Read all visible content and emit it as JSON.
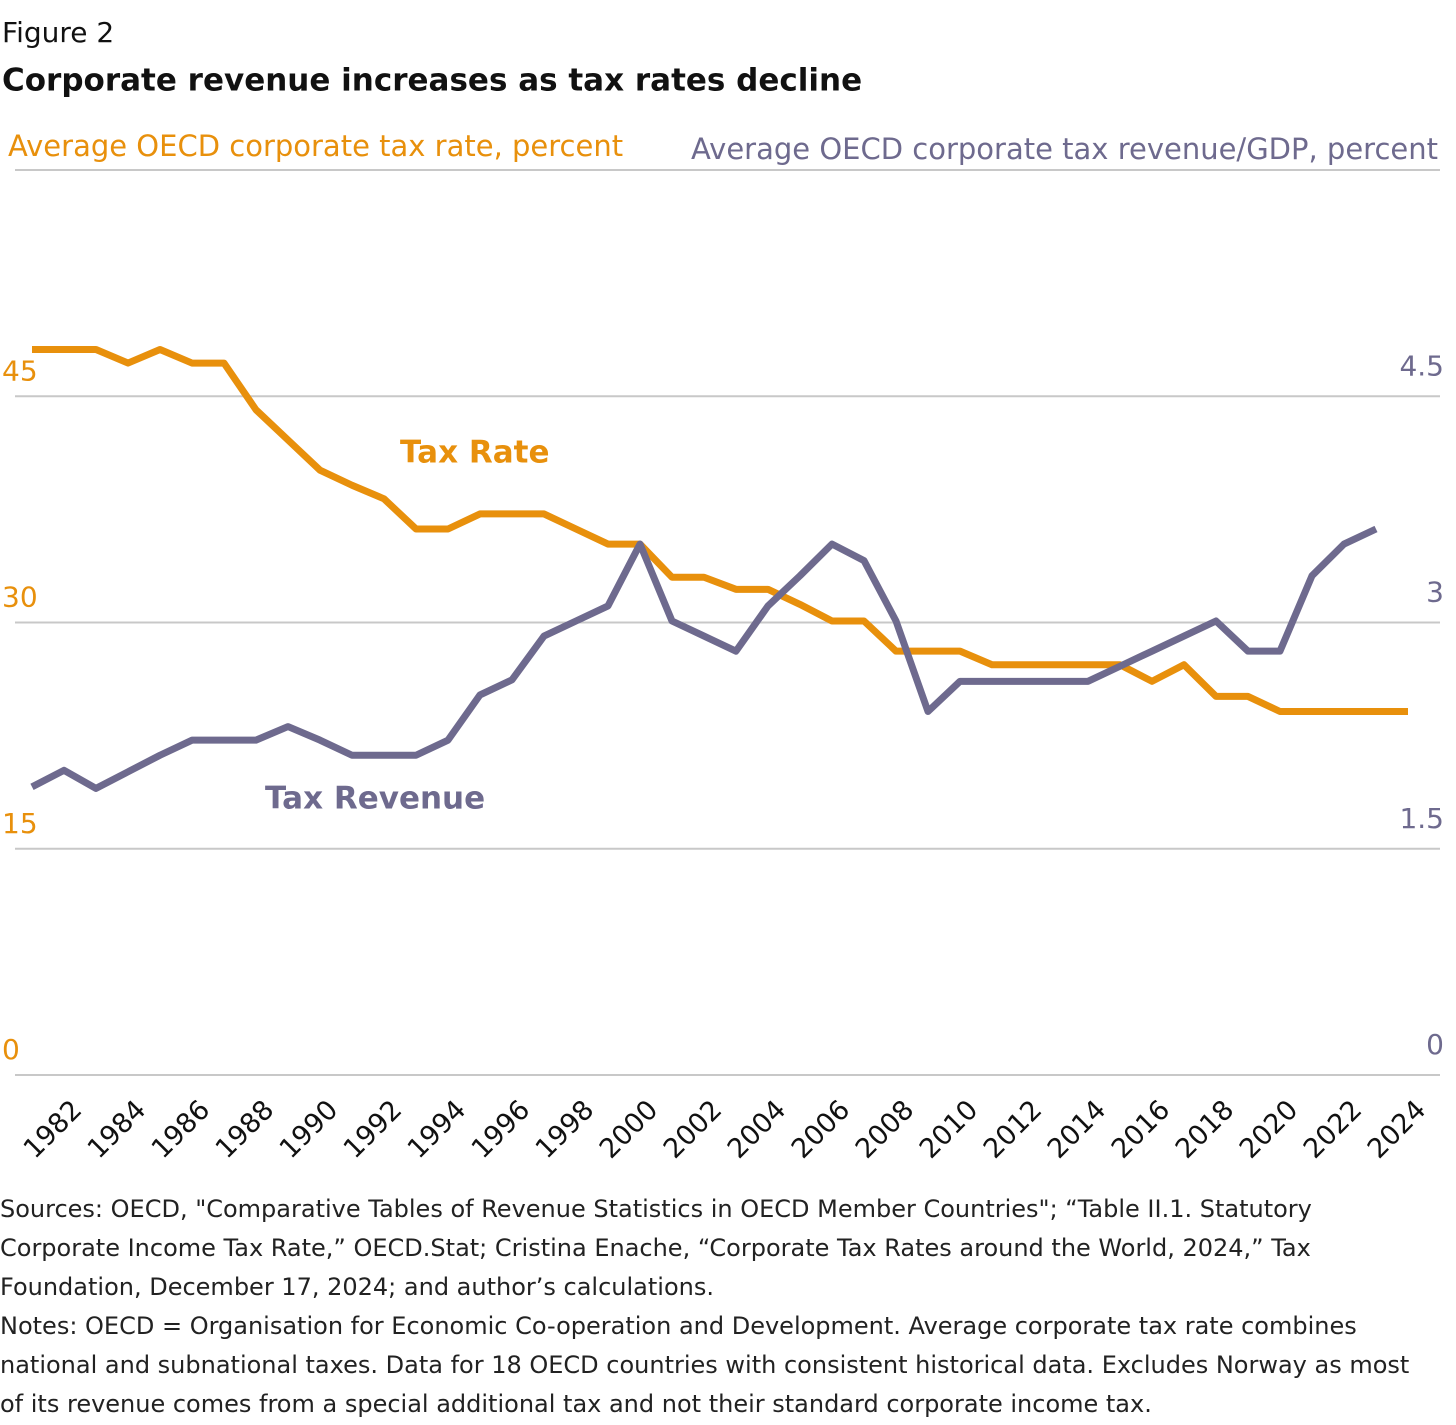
{
  "figure_label": "Figure 2",
  "chart_data": {
    "type": "line",
    "title": "Corporate revenue increases as tax rates decline",
    "y_axis_label": "Average OECD corporate tax rate, percent",
    "y2_axis_label": "Average OECD corporate tax revenue/GDP, percent",
    "annotations": [
      "Tax Rate",
      "Tax Revenue"
    ],
    "x": [
      1981,
      1982,
      1983,
      1984,
      1985,
      1986,
      1987,
      1988,
      1989,
      1990,
      1991,
      1992,
      1993,
      1994,
      1995,
      1996,
      1997,
      1998,
      1999,
      2000,
      2001,
      2002,
      2003,
      2004,
      2005,
      2006,
      2007,
      2008,
      2009,
      2010,
      2011,
      2012,
      2013,
      2014,
      2015,
      2016,
      2017,
      2018,
      2019,
      2020,
      2021,
      2022,
      2023,
      2024
    ],
    "xlim": [
      1980,
      2025
    ],
    "xticks": [
      1982,
      1984,
      1986,
      1988,
      1990,
      1992,
      1994,
      1996,
      1998,
      2000,
      2002,
      2004,
      2006,
      2008,
      2010,
      2012,
      2014,
      2016,
      2018,
      2020,
      2022,
      2024
    ],
    "ylim": [
      0,
      60
    ],
    "yticks": [
      0,
      15,
      30,
      45
    ],
    "y2lim": [
      0,
      6
    ],
    "y2ticks": [
      0,
      1.5,
      3,
      4.5
    ],
    "grid": true,
    "series": [
      {
        "name": "Tax Rate",
        "color": "#e8900c",
        "values": [
          48.1,
          48.1,
          48.1,
          47.2,
          48.1,
          47.2,
          47.2,
          44.1,
          42.1,
          40.1,
          39.1,
          38.2,
          36.2,
          36.2,
          37.2,
          37.2,
          37.2,
          36.2,
          35.2,
          35.2,
          33.0,
          33.0,
          32.2,
          32.2,
          31.2,
          30.1,
          30.1,
          28.1,
          28.1,
          28.1,
          27.2,
          27.2,
          27.2,
          27.2,
          27.2,
          26.1,
          27.2,
          25.1,
          25.1,
          24.1,
          24.1,
          24.1,
          24.1,
          24.1
        ]
      },
      {
        "name": "Tax Revenue",
        "color": "#6e6a8e",
        "axis": "y2",
        "values": [
          1.91,
          2.02,
          1.9,
          2.01,
          2.12,
          2.22,
          2.22,
          2.22,
          2.31,
          2.22,
          2.12,
          2.12,
          2.12,
          2.22,
          2.52,
          2.62,
          2.91,
          3.01,
          3.11,
          3.52,
          3.01,
          2.91,
          2.81,
          3.11,
          3.31,
          3.52,
          3.41,
          3.01,
          2.41,
          2.61,
          2.61,
          2.61,
          2.61,
          2.61,
          2.71,
          2.81,
          2.91,
          3.01,
          2.81,
          2.81,
          3.31,
          3.52,
          3.62,
          null
        ]
      }
    ]
  },
  "footer": {
    "sources": "Sources: OECD, \"Comparative Tables of Revenue Statistics in OECD Member Countries\"; “Table II.1. Statutory Corporate Income Tax Rate,” OECD.Stat; Cristina Enache, “Corporate Tax Rates around the World, 2024,” Tax Foundation, December 17, 2024; and author’s calculations.",
    "notes": "Notes: OECD = Organisation for Economic Co-operation and Development. Average corporate tax rate combines national and subnational taxes. Data for 18 OECD countries with consistent historical data. Excludes Norway as most of its revenue comes from a special additional tax and not their standard corporate income tax."
  }
}
